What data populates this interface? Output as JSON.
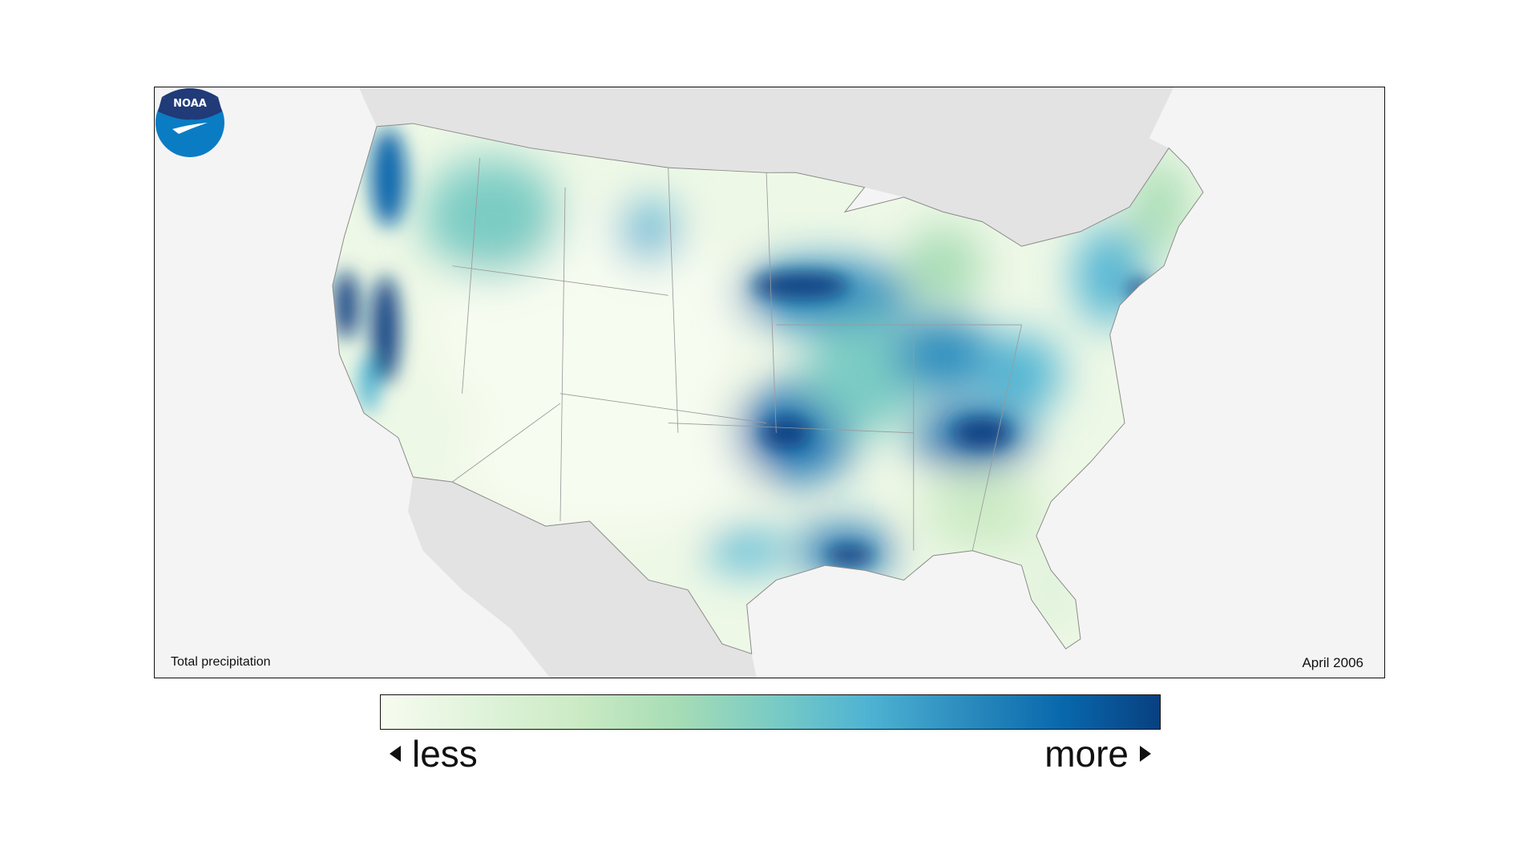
{
  "map": {
    "title": "Total precipitation",
    "date": "April 2006",
    "logo_text": "NOAA",
    "colors": {
      "ocean": "#f4f4f4",
      "land_outside": "#e3e3e3",
      "state_lines": "#9a9a9a"
    }
  },
  "legend": {
    "less_label": "less",
    "more_label": "more",
    "colors": [
      "#f7fcf0",
      "#e0f3db",
      "#ccebc5",
      "#a8ddb5",
      "#7bccc4",
      "#4eb3d3",
      "#2b8cbe",
      "#0868ac",
      "#084081"
    ]
  }
}
